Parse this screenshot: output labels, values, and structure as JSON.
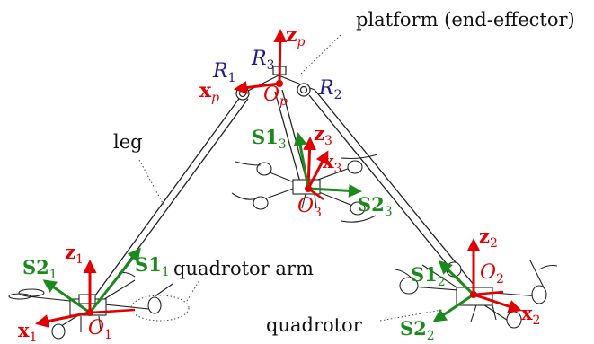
{
  "colors": {
    "frame_axes": "#e00000",
    "leg_axes": "#1a8a1a",
    "joints": "#1a1a8c",
    "structure": "#111111"
  },
  "labels": {
    "platform": "platform (end-effector)",
    "leg": "leg",
    "quadrotor_arm": "quadrotor arm",
    "quadrotor": "quadrotor"
  },
  "platform_frame": {
    "z": "z",
    "z_sub": "p",
    "x": "x",
    "x_sub": "p",
    "origin": "O",
    "origin_sub": "p"
  },
  "joints": {
    "r1": "R",
    "r1_sub": "1",
    "r2": "R",
    "r2_sub": "2",
    "r3": "R",
    "r3_sub": "3"
  },
  "quad1": {
    "z": "z",
    "z_sub": "1",
    "x": "x",
    "x_sub": "1",
    "origin": "O",
    "origin_sub": "1",
    "s1": "S1",
    "s1_sub": "1",
    "s2": "S2",
    "s2_sub": "1"
  },
  "quad2": {
    "z": "z",
    "z_sub": "2",
    "x": "x",
    "x_sub": "2",
    "origin": "O",
    "origin_sub": "2",
    "s1": "S1",
    "s1_sub": "2",
    "s2": "S2",
    "s2_sub": "2"
  },
  "quad3": {
    "z": "z",
    "z_sub": "3",
    "x": "x",
    "x_sub": "3",
    "origin": "O",
    "origin_sub": "3",
    "s1": "S1",
    "s1_sub": "3",
    "s2": "S2",
    "s2_sub": "3"
  }
}
